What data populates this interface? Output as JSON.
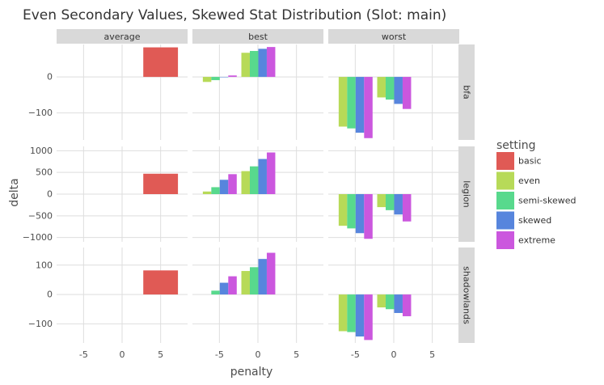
{
  "chart_data": {
    "type": "bar",
    "title": "Even Secondary Values, Skewed Stat Distribution (Slot: main)",
    "xlabel": "penalty",
    "ylabel": "delta",
    "x_ticks": [
      "-5",
      "0",
      "5"
    ],
    "x_tick_values": [
      -5,
      0,
      5
    ],
    "xlim": [
      -8.5,
      8.5
    ],
    "columns": [
      "average",
      "best",
      "worst"
    ],
    "rows": [
      {
        "name": "bfa",
        "ylim": [
          -175,
          90
        ],
        "y_ticks": [
          0,
          -100
        ],
        "y_tick_labels": [
          "0",
          "−100"
        ]
      },
      {
        "name": "legion",
        "ylim": [
          -1100,
          1100
        ],
        "y_ticks": [
          1000,
          500,
          0,
          -500,
          -1000
        ],
        "y_tick_labels": [
          "1000",
          "500",
          "0",
          "−500",
          "−1000"
        ]
      },
      {
        "name": "shadowlands",
        "ylim": [
          -165,
          160
        ],
        "y_ticks": [
          100,
          0,
          -100
        ],
        "y_tick_labels": [
          "100",
          "0",
          "−100"
        ]
      }
    ],
    "legend": {
      "title": "setting",
      "position": "right"
    },
    "settings": [
      {
        "name": "basic",
        "color": "#e05a55"
      },
      {
        "name": "even",
        "color": "#b7da58"
      },
      {
        "name": "semi-skewed",
        "color": "#58d98d"
      },
      {
        "name": "skewed",
        "color": "#5785dd"
      },
      {
        "name": "extreme",
        "color": "#cb57de"
      }
    ],
    "bar_width": 1.1,
    "bars": [
      {
        "row": "bfa",
        "col": "average",
        "setting": "basic",
        "x": 5,
        "width": 4.5,
        "y": 82
      },
      {
        "row": "legion",
        "col": "average",
        "setting": "basic",
        "x": 5,
        "width": 4.5,
        "y": 470
      },
      {
        "row": "shadowlands",
        "col": "average",
        "setting": "basic",
        "x": 5,
        "width": 4.5,
        "y": 82
      },
      {
        "row": "bfa",
        "col": "best",
        "setting": "even",
        "x": -6.6,
        "y": -14
      },
      {
        "row": "bfa",
        "col": "best",
        "setting": "semi-skewed",
        "x": -5.5,
        "y": -9
      },
      {
        "row": "bfa",
        "col": "best",
        "setting": "skewed",
        "x": -4.4,
        "y": 0
      },
      {
        "row": "bfa",
        "col": "best",
        "setting": "extreme",
        "x": -3.3,
        "y": 4
      },
      {
        "row": "bfa",
        "col": "best",
        "setting": "even",
        "x": -1.6,
        "y": 67
      },
      {
        "row": "bfa",
        "col": "best",
        "setting": "semi-skewed",
        "x": -0.5,
        "y": 72
      },
      {
        "row": "bfa",
        "col": "best",
        "setting": "skewed",
        "x": 0.6,
        "y": 78
      },
      {
        "row": "bfa",
        "col": "best",
        "setting": "extreme",
        "x": 1.7,
        "y": 83
      },
      {
        "row": "bfa",
        "col": "worst",
        "setting": "even",
        "x": -6.6,
        "y": -138
      },
      {
        "row": "bfa",
        "col": "worst",
        "setting": "semi-skewed",
        "x": -5.5,
        "y": -143
      },
      {
        "row": "bfa",
        "col": "worst",
        "setting": "skewed",
        "x": -4.4,
        "y": -155
      },
      {
        "row": "bfa",
        "col": "worst",
        "setting": "extreme",
        "x": -3.3,
        "y": -170
      },
      {
        "row": "bfa",
        "col": "worst",
        "setting": "even",
        "x": -1.6,
        "y": -57
      },
      {
        "row": "bfa",
        "col": "worst",
        "setting": "semi-skewed",
        "x": -0.5,
        "y": -63
      },
      {
        "row": "bfa",
        "col": "worst",
        "setting": "skewed",
        "x": 0.6,
        "y": -75
      },
      {
        "row": "bfa",
        "col": "worst",
        "setting": "extreme",
        "x": 1.7,
        "y": -89
      },
      {
        "row": "legion",
        "col": "best",
        "setting": "even",
        "x": -6.6,
        "y": 60
      },
      {
        "row": "legion",
        "col": "best",
        "setting": "semi-skewed",
        "x": -5.5,
        "y": 160
      },
      {
        "row": "legion",
        "col": "best",
        "setting": "skewed",
        "x": -4.4,
        "y": 330
      },
      {
        "row": "legion",
        "col": "best",
        "setting": "extreme",
        "x": -3.3,
        "y": 460
      },
      {
        "row": "legion",
        "col": "best",
        "setting": "even",
        "x": -1.6,
        "y": 530
      },
      {
        "row": "legion",
        "col": "best",
        "setting": "semi-skewed",
        "x": -0.5,
        "y": 640
      },
      {
        "row": "legion",
        "col": "best",
        "setting": "skewed",
        "x": 0.6,
        "y": 810
      },
      {
        "row": "legion",
        "col": "best",
        "setting": "extreme",
        "x": 1.7,
        "y": 960
      },
      {
        "row": "legion",
        "col": "worst",
        "setting": "even",
        "x": -6.6,
        "y": -730
      },
      {
        "row": "legion",
        "col": "worst",
        "setting": "semi-skewed",
        "x": -5.5,
        "y": -790
      },
      {
        "row": "legion",
        "col": "worst",
        "setting": "skewed",
        "x": -4.4,
        "y": -900
      },
      {
        "row": "legion",
        "col": "worst",
        "setting": "extreme",
        "x": -3.3,
        "y": -1030
      },
      {
        "row": "legion",
        "col": "worst",
        "setting": "even",
        "x": -1.6,
        "y": -300
      },
      {
        "row": "legion",
        "col": "worst",
        "setting": "semi-skewed",
        "x": -0.5,
        "y": -370
      },
      {
        "row": "legion",
        "col": "worst",
        "setting": "skewed",
        "x": 0.6,
        "y": -470
      },
      {
        "row": "legion",
        "col": "worst",
        "setting": "extreme",
        "x": 1.7,
        "y": -630
      },
      {
        "row": "shadowlands",
        "col": "best",
        "setting": "semi-skewed",
        "x": -5.5,
        "y": 13
      },
      {
        "row": "shadowlands",
        "col": "best",
        "setting": "skewed",
        "x": -4.4,
        "y": 40
      },
      {
        "row": "shadowlands",
        "col": "best",
        "setting": "extreme",
        "x": -3.3,
        "y": 62
      },
      {
        "row": "shadowlands",
        "col": "best",
        "setting": "even",
        "x": -1.6,
        "y": 80
      },
      {
        "row": "shadowlands",
        "col": "best",
        "setting": "semi-skewed",
        "x": -0.5,
        "y": 93
      },
      {
        "row": "shadowlands",
        "col": "best",
        "setting": "skewed",
        "x": 0.6,
        "y": 121
      },
      {
        "row": "shadowlands",
        "col": "best",
        "setting": "extreme",
        "x": 1.7,
        "y": 142
      },
      {
        "row": "shadowlands",
        "col": "worst",
        "setting": "even",
        "x": -6.6,
        "y": -125
      },
      {
        "row": "shadowlands",
        "col": "worst",
        "setting": "semi-skewed",
        "x": -5.5,
        "y": -128
      },
      {
        "row": "shadowlands",
        "col": "worst",
        "setting": "skewed",
        "x": -4.4,
        "y": -143
      },
      {
        "row": "shadowlands",
        "col": "worst",
        "setting": "extreme",
        "x": -3.3,
        "y": -155
      },
      {
        "row": "shadowlands",
        "col": "worst",
        "setting": "even",
        "x": -1.6,
        "y": -44
      },
      {
        "row": "shadowlands",
        "col": "worst",
        "setting": "semi-skewed",
        "x": -0.5,
        "y": -50
      },
      {
        "row": "shadowlands",
        "col": "worst",
        "setting": "skewed",
        "x": 0.6,
        "y": -63
      },
      {
        "row": "shadowlands",
        "col": "worst",
        "setting": "extreme",
        "x": 1.7,
        "y": -74
      }
    ]
  }
}
